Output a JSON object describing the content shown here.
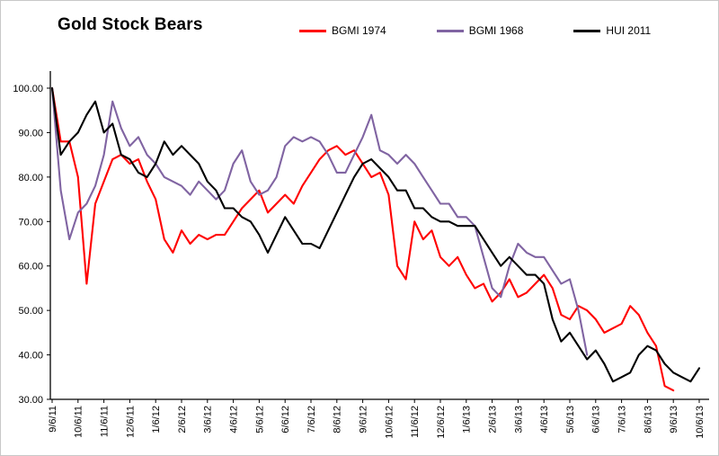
{
  "title": "Gold Stock Bears",
  "colors": {
    "background": "#FFFFFF",
    "axis": "#000000"
  },
  "chart_data": {
    "type": "line",
    "title": "Gold Stock Bears",
    "legend_position": "top",
    "grid": false,
    "ylim": [
      30,
      100
    ],
    "y_ticks": [
      "100.00",
      "90.00",
      "80.00",
      "70.00",
      "60.00",
      "50.00",
      "40.00",
      "30.00"
    ],
    "categories": [
      "9/6/11",
      "10/6/11",
      "11/6/11",
      "12/6/11",
      "1/6/12",
      "2/6/12",
      "3/6/12",
      "4/6/12",
      "5/6/12",
      "6/6/12",
      "7/6/12",
      "8/6/12",
      "9/6/12",
      "10/6/12",
      "11/6/12",
      "12/6/12",
      "1/6/13",
      "2/6/13",
      "3/6/13",
      "4/6/13",
      "5/6/13",
      "6/6/13",
      "7/6/13",
      "8/6/13",
      "9/6/13",
      "10/6/13"
    ],
    "x_unit": "months from 9/6/11, sampled every 1/3 month",
    "dt_months": 0.333333,
    "series": [
      {
        "name": "BGMI 1974",
        "color": "#FF0000",
        "values": [
          100,
          88,
          88,
          80,
          56,
          74,
          79,
          84,
          85,
          83,
          84,
          79,
          75,
          66,
          63,
          68,
          65,
          67,
          66,
          67,
          67,
          70,
          73,
          75,
          77,
          72,
          74,
          76,
          74,
          78,
          81,
          84,
          86,
          87,
          85,
          86,
          83,
          80,
          81,
          76,
          60,
          57,
          70,
          66,
          68,
          62,
          60,
          62,
          58,
          55,
          56,
          52,
          54,
          57,
          53,
          54,
          56,
          58,
          55,
          49,
          48,
          51,
          50,
          48,
          45,
          46,
          47,
          51,
          49,
          45,
          42,
          33,
          32,
          null,
          null,
          null
        ]
      },
      {
        "name": "BGMI 1968",
        "color": "#8064A2",
        "values": [
          100,
          77,
          66,
          72,
          74,
          78,
          85,
          97,
          91,
          87,
          89,
          85,
          83,
          80,
          79,
          78,
          76,
          79,
          77,
          75,
          77,
          83,
          86,
          79,
          76,
          77,
          80,
          87,
          89,
          88,
          89,
          88,
          85,
          81,
          81,
          85,
          89,
          94,
          86,
          85,
          83,
          85,
          83,
          80,
          77,
          74,
          74,
          71,
          71,
          69,
          62,
          55,
          53,
          60,
          65,
          63,
          62,
          62,
          59,
          56,
          57,
          50,
          40,
          null,
          null,
          null,
          null,
          null,
          null,
          null,
          null,
          null,
          null,
          null,
          null,
          null
        ]
      },
      {
        "name": "HUI 2011",
        "color": "#000000",
        "values": [
          100,
          85,
          88,
          90,
          94,
          97,
          90,
          92,
          85,
          84,
          81,
          80,
          83,
          88,
          85,
          87,
          85,
          83,
          79,
          77,
          73,
          73,
          71,
          70,
          67,
          63,
          67,
          71,
          68,
          65,
          65,
          64,
          68,
          72,
          76,
          80,
          83,
          84,
          82,
          80,
          77,
          77,
          73,
          73,
          71,
          70,
          70,
          69,
          69,
          69,
          66,
          63,
          60,
          62,
          60,
          58,
          58,
          56,
          48,
          43,
          45,
          42,
          39,
          41,
          38,
          34,
          35,
          36,
          40,
          42,
          41,
          38,
          36,
          35,
          34,
          37
        ]
      }
    ]
  }
}
